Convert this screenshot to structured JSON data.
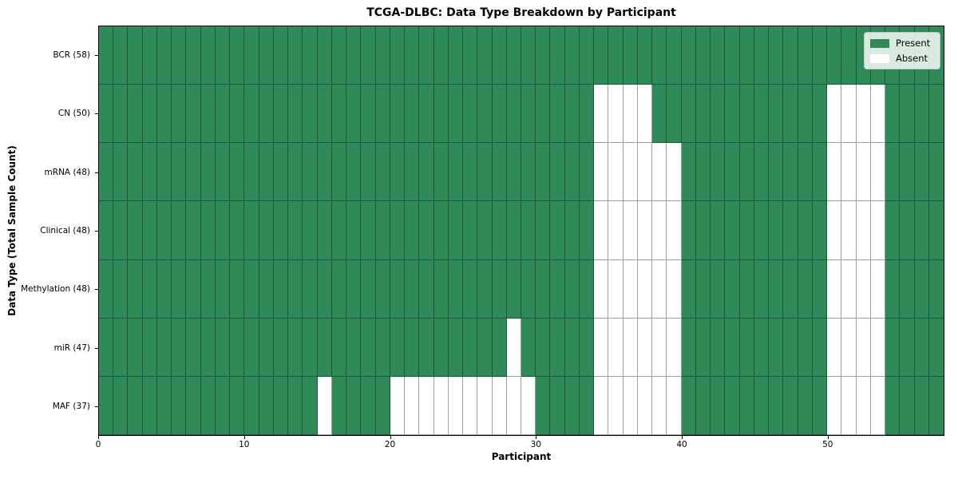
{
  "title": "TCGA-DLBC: Data Type Breakdown by Participant",
  "legend": {
    "present_label": "Present",
    "absent_label": "Absent"
  },
  "chart_data": {
    "type": "heatmap",
    "title": "TCGA-DLBC: Data Type Breakdown by Participant",
    "xlabel": "Participant",
    "ylabel": "Data Type (Total Sample Count)",
    "n_participants": 58,
    "x_range": [
      0,
      58
    ],
    "x_ticks": [
      0,
      10,
      20,
      30,
      40,
      50
    ],
    "grid": true,
    "legend_position": "upper right",
    "legend_entries": [
      {
        "label": "Present",
        "color": "#2E8B57"
      },
      {
        "label": "Absent",
        "color": "#FFFFFF"
      }
    ],
    "colors": {
      "present": "#2E8B57",
      "absent": "#FFFFFF",
      "cell_edge": "rgba(0,0,0,0.38)"
    },
    "rows": [
      {
        "label": "BCR (58)",
        "data_type": "BCR",
        "total_samples": 58,
        "absent_participants": []
      },
      {
        "label": "CN (50)",
        "data_type": "CN",
        "total_samples": 50,
        "absent_participants": [
          34,
          35,
          36,
          37,
          50,
          51,
          52,
          53
        ]
      },
      {
        "label": "mRNA (48)",
        "data_type": "mRNA",
        "total_samples": 48,
        "absent_participants": [
          34,
          35,
          36,
          37,
          38,
          39,
          50,
          51,
          52,
          53
        ]
      },
      {
        "label": "Clinical (48)",
        "data_type": "Clinical",
        "total_samples": 48,
        "absent_participants": [
          34,
          35,
          36,
          37,
          38,
          39,
          50,
          51,
          52,
          53
        ]
      },
      {
        "label": "Methylation (48)",
        "data_type": "Methylation",
        "total_samples": 48,
        "absent_participants": [
          34,
          35,
          36,
          37,
          38,
          39,
          50,
          51,
          52,
          53
        ]
      },
      {
        "label": "miR (47)",
        "data_type": "miR",
        "total_samples": 47,
        "absent_participants": [
          28,
          34,
          35,
          36,
          37,
          38,
          39,
          50,
          51,
          52,
          53
        ]
      },
      {
        "label": "MAF (37)",
        "data_type": "MAF",
        "total_samples": 37,
        "absent_participants": [
          15,
          20,
          21,
          22,
          23,
          24,
          25,
          26,
          27,
          28,
          29,
          34,
          35,
          36,
          37,
          38,
          39,
          50,
          51,
          52,
          53
        ]
      }
    ]
  }
}
